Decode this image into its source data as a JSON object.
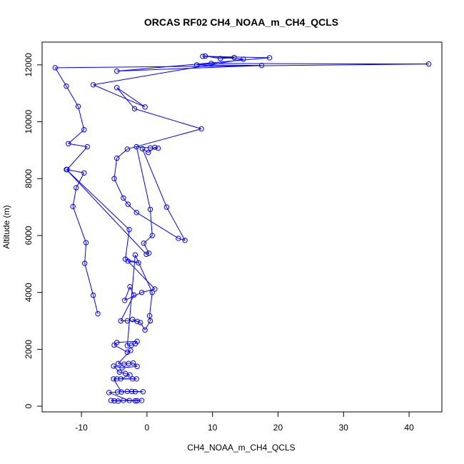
{
  "chart_data": {
    "type": "line",
    "title": "ORCAS RF02 CH4_NOAA_m_CH4_QCLS",
    "xlabel": "CH4_NOAA_m_CH4_QCLS",
    "ylabel": "Altitude (m)",
    "xlim": [
      -16,
      45
    ],
    "ylim": [
      -200,
      12800
    ],
    "xticks": [
      -10,
      0,
      10,
      20,
      30,
      40
    ],
    "yticks": [
      0,
      2000,
      4000,
      6000,
      8000,
      10000,
      12000
    ],
    "grid": false,
    "line_color": "#0000ff",
    "marker": "open-circle",
    "series": [
      {
        "values": [
          [
            -7.5,
            3250
          ],
          [
            -8.2,
            3900
          ],
          [
            -9.5,
            5020
          ],
          [
            -9.3,
            5750
          ],
          [
            -11.3,
            7020
          ],
          [
            -10.8,
            7680
          ],
          [
            -9.6,
            8200
          ],
          [
            -12.2,
            8320
          ],
          [
            -9.1,
            9120
          ],
          [
            -12.0,
            9230
          ],
          [
            -9.6,
            9720
          ],
          [
            -10.5,
            10540
          ],
          [
            -12.3,
            11250
          ],
          [
            -14.0,
            11900
          ],
          [
            43.0,
            12030
          ],
          [
            9.8,
            12050
          ],
          [
            7.6,
            12000
          ],
          [
            17.5,
            11980
          ],
          [
            -4.6,
            11780
          ],
          [
            18.7,
            12250
          ],
          [
            8.5,
            12300
          ],
          [
            13.3,
            12260
          ],
          [
            11.2,
            12220
          ],
          [
            8.9,
            12310
          ],
          [
            14.7,
            12200
          ],
          [
            -8.2,
            11300
          ],
          [
            -0.3,
            10520
          ],
          [
            -4.6,
            11200
          ],
          [
            -1.9,
            10460
          ],
          [
            8.3,
            9750
          ],
          [
            -3.0,
            9040
          ],
          [
            -4.6,
            8720
          ],
          [
            -5.0,
            8000
          ],
          [
            -3.6,
            7320
          ],
          [
            -2.9,
            7100
          ],
          [
            -1.6,
            6810
          ],
          [
            4.8,
            5900
          ],
          [
            5.8,
            5830
          ],
          [
            3.0,
            7000
          ],
          [
            -0.7,
            9050
          ],
          [
            0.2,
            8920
          ],
          [
            1.2,
            9100
          ],
          [
            1.7,
            9070
          ],
          [
            0.5,
            9080
          ],
          [
            -1.6,
            9120
          ],
          [
            0.5,
            6920
          ],
          [
            0.8,
            6000
          ],
          [
            -0.5,
            5730
          ],
          [
            0.3,
            5380
          ],
          [
            -0.1,
            5340
          ],
          [
            -12.3,
            8320
          ],
          [
            -2.7,
            6210
          ],
          [
            -3.3,
            5170
          ],
          [
            -1.3,
            5040
          ],
          [
            -2.9,
            5100
          ],
          [
            1.2,
            4120
          ],
          [
            -0.8,
            4000
          ],
          [
            -3.4,
            3720
          ],
          [
            -2.6,
            4200
          ],
          [
            -2.0,
            3910
          ],
          [
            -4.0,
            3000
          ],
          [
            -3.0,
            3000
          ],
          [
            -1.5,
            2980
          ],
          [
            -2.2,
            3050
          ],
          [
            -1.0,
            2940
          ],
          [
            -0.3,
            2680
          ],
          [
            0.5,
            3000
          ],
          [
            0.4,
            3180
          ],
          [
            0.8,
            4000
          ],
          [
            -1.8,
            5320
          ],
          [
            -3.0,
            2130
          ],
          [
            -2.4,
            2140
          ],
          [
            -1.8,
            2200
          ],
          [
            -1.5,
            2280
          ],
          [
            -4.6,
            2240
          ],
          [
            -5.0,
            2150
          ],
          [
            -3.0,
            1900
          ],
          [
            -2.5,
            1960
          ],
          [
            -4.4,
            1500
          ],
          [
            -3.5,
            1480
          ],
          [
            -2.8,
            1500
          ],
          [
            -2.1,
            1520
          ],
          [
            -1.5,
            1400
          ],
          [
            -3.8,
            1350
          ],
          [
            -5.1,
            1410
          ],
          [
            -4.2,
            1200
          ],
          [
            -3.3,
            1150
          ],
          [
            -2.6,
            1100
          ],
          [
            -4.0,
            960
          ],
          [
            -2.2,
            960
          ],
          [
            -1.6,
            960
          ],
          [
            -4.6,
            960
          ],
          [
            -5.1,
            960
          ],
          [
            -3.9,
            500
          ],
          [
            -3.0,
            520
          ],
          [
            -1.8,
            510
          ],
          [
            -0.6,
            510
          ],
          [
            -2.3,
            520
          ],
          [
            -4.5,
            500
          ],
          [
            -5.8,
            480
          ],
          [
            -2.7,
            200
          ],
          [
            -1.5,
            190
          ],
          [
            -0.8,
            200
          ],
          [
            -3.6,
            200
          ],
          [
            -4.4,
            180
          ],
          [
            -5.0,
            190
          ],
          [
            -5.5,
            200
          ],
          [
            -1.8,
            190
          ]
        ]
      }
    ]
  }
}
